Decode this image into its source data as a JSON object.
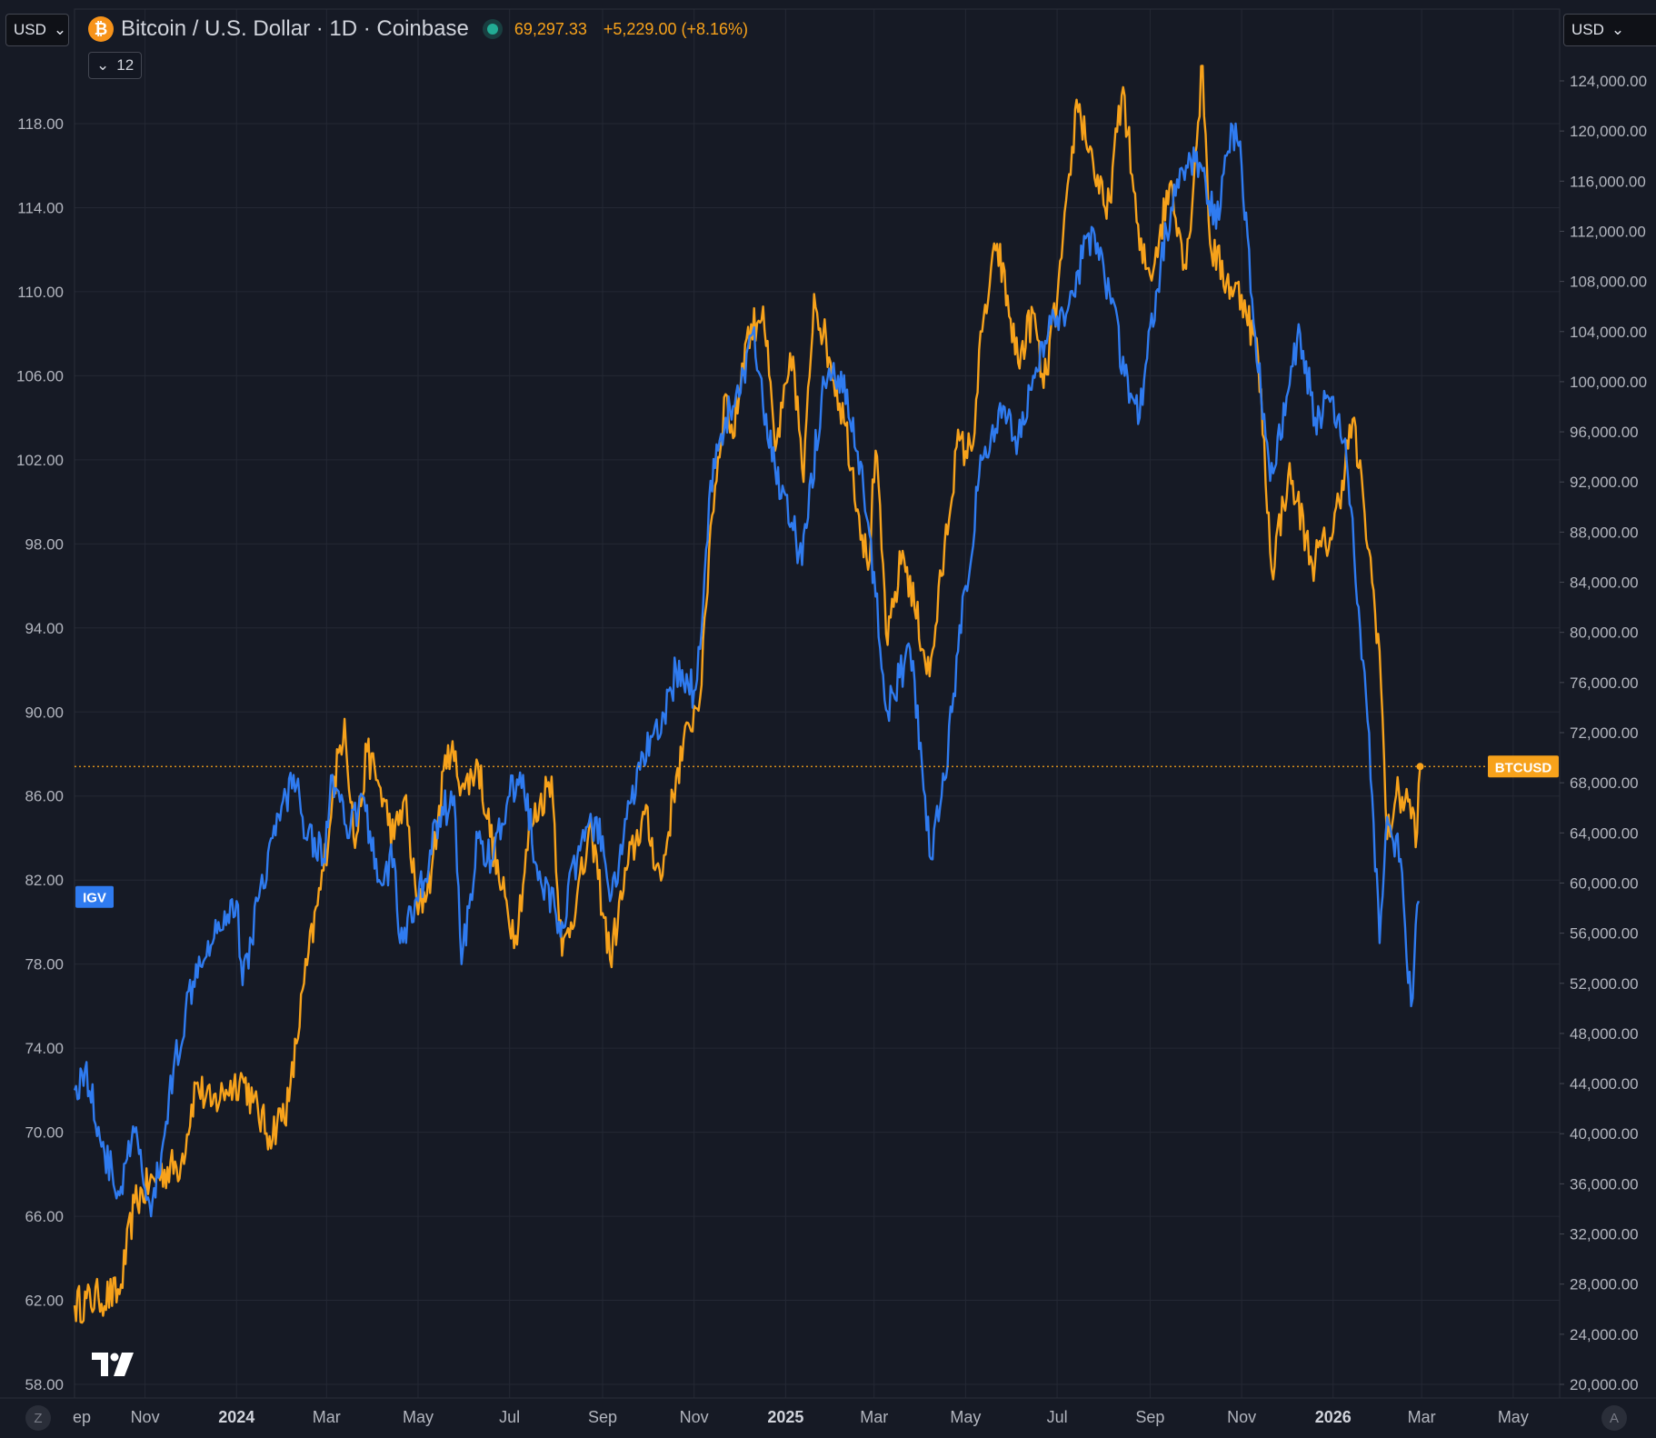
{
  "header": {
    "title": "Bitcoin / U.S. Dollar · 1D · Coinbase",
    "price": "69,297.33",
    "change": "+5,229.00 (+8.16%)",
    "left_currency": "USD",
    "right_currency": "USD",
    "collapse_count": "12"
  },
  "footer": {
    "left_corner": "Z",
    "right_corner": "A"
  },
  "colors": {
    "background": "#161a25",
    "grid": "#242834",
    "btc": "#f7a21b",
    "igv": "#2f7bf0",
    "axis_text": "#b2b5be"
  },
  "icons": [
    "bitcoin-icon",
    "chevron-down-icon",
    "tradingview-logo-icon"
  ],
  "chart_data": {
    "type": "line",
    "title": "Bitcoin / U.S. Dollar · 1D · Coinbase",
    "x_ticks": [
      "ep",
      "Nov",
      "2024",
      "Mar",
      "May",
      "Jul",
      "Sep",
      "Nov",
      "2025",
      "Mar",
      "May",
      "Jul",
      "Sep",
      "Nov",
      "2026",
      "Mar",
      "May"
    ],
    "xlim": [
      "2023-09-15",
      "2026-06-01"
    ],
    "y_left": {
      "ticks": [
        "118.00",
        "114.00",
        "110.00",
        "106.00",
        "102.00",
        "98.00",
        "94.00",
        "90.00",
        "86.00",
        "82.00",
        "78.00",
        "74.00",
        "70.00",
        "66.00",
        "62.00",
        "58.00"
      ],
      "range": [
        58,
        120
      ]
    },
    "y_right": {
      "ticks": [
        "124,000.00",
        "120,000.00",
        "116,000.00",
        "112,000.00",
        "108,000.00",
        "104,000.00",
        "100,000.00",
        "96,000.00",
        "92,000.00",
        "88,000.00",
        "84,000.00",
        "80,000.00",
        "76,000.00",
        "72,000.00",
        "68,000.00",
        "64,000.00",
        "60,000.00",
        "56,000.00",
        "52,000.00",
        "48,000.00",
        "44,000.00",
        "40,000.00",
        "36,000.00",
        "32,000.00",
        "28,000.00",
        "24,000.00",
        "20,000.00"
      ],
      "range": [
        20000,
        125000
      ]
    },
    "series": [
      {
        "name": "BTCUSD",
        "axis": "right",
        "points": [
          [
            "2023-09-15",
            26300
          ],
          [
            "2023-10-01",
            26900
          ],
          [
            "2023-10-15",
            27200
          ],
          [
            "2023-10-25",
            34500
          ],
          [
            "2023-11-10",
            36800
          ],
          [
            "2023-11-25",
            37600
          ],
          [
            "2023-12-05",
            44000
          ],
          [
            "2023-12-15",
            42200
          ],
          [
            "2023-12-25",
            43500
          ],
          [
            "2024-01-05",
            44500
          ],
          [
            "2024-01-12",
            42500
          ],
          [
            "2024-01-23",
            39800
          ],
          [
            "2024-02-05",
            42600
          ],
          [
            "2024-02-15",
            52000
          ],
          [
            "2024-02-28",
            61000
          ],
          [
            "2024-03-05",
            67000
          ],
          [
            "2024-03-13",
            73100
          ],
          [
            "2024-03-20",
            62800
          ],
          [
            "2024-03-28",
            70500
          ],
          [
            "2024-04-05",
            67800
          ],
          [
            "2024-04-15",
            63500
          ],
          [
            "2024-04-22",
            66800
          ],
          [
            "2024-05-01",
            57500
          ],
          [
            "2024-05-10",
            61000
          ],
          [
            "2024-05-21",
            71000
          ],
          [
            "2024-06-01",
            67500
          ],
          [
            "2024-06-10",
            69500
          ],
          [
            "2024-06-24",
            60200
          ],
          [
            "2024-07-05",
            55800
          ],
          [
            "2024-07-15",
            64500
          ],
          [
            "2024-07-29",
            68500
          ],
          [
            "2024-08-05",
            54200
          ],
          [
            "2024-08-15",
            59000
          ],
          [
            "2024-08-25",
            64000
          ],
          [
            "2024-09-06",
            53900
          ],
          [
            "2024-09-18",
            61500
          ],
          [
            "2024-09-29",
            65500
          ],
          [
            "2024-10-10",
            60200
          ],
          [
            "2024-10-20",
            68500
          ],
          [
            "2024-10-29",
            72500
          ],
          [
            "2024-11-06",
            75800
          ],
          [
            "2024-11-12",
            88500
          ],
          [
            "2024-11-22",
            99000
          ],
          [
            "2024-11-27",
            95500
          ],
          [
            "2024-12-05",
            103000
          ],
          [
            "2024-12-17",
            106000
          ],
          [
            "2024-12-25",
            94500
          ],
          [
            "2025-01-06",
            102000
          ],
          [
            "2025-01-13",
            92000
          ],
          [
            "2025-01-20",
            107000
          ],
          [
            "2025-01-31",
            101500
          ],
          [
            "2025-02-10",
            96500
          ],
          [
            "2025-02-25",
            85000
          ],
          [
            "2025-03-02",
            94500
          ],
          [
            "2025-03-10",
            79000
          ],
          [
            "2025-03-20",
            86500
          ],
          [
            "2025-04-07",
            76500
          ],
          [
            "2025-04-15",
            84500
          ],
          [
            "2025-04-25",
            94800
          ],
          [
            "2025-05-05",
            94500
          ],
          [
            "2025-05-12",
            104000
          ],
          [
            "2025-05-22",
            111000
          ],
          [
            "2025-06-05",
            101500
          ],
          [
            "2025-06-15",
            105500
          ],
          [
            "2025-06-22",
            99500
          ],
          [
            "2025-07-01",
            106500
          ],
          [
            "2025-07-10",
            116500
          ],
          [
            "2025-07-14",
            122500
          ],
          [
            "2025-07-25",
            117500
          ],
          [
            "2025-08-03",
            113000
          ],
          [
            "2025-08-14",
            123500
          ],
          [
            "2025-08-25",
            110500
          ],
          [
            "2025-09-01",
            108500
          ],
          [
            "2025-09-15",
            116000
          ],
          [
            "2025-09-25",
            109000
          ],
          [
            "2025-10-06",
            125200
          ],
          [
            "2025-10-11",
            111000
          ],
          [
            "2025-10-22",
            108000
          ],
          [
            "2025-11-03",
            106500
          ],
          [
            "2025-11-12",
            102000
          ],
          [
            "2025-11-21",
            85000
          ],
          [
            "2025-12-02",
            92500
          ],
          [
            "2025-12-08",
            90500
          ],
          [
            "2025-12-18",
            85500
          ],
          [
            "2026-01-01",
            88000
          ],
          [
            "2026-01-14",
            97000
          ],
          [
            "2026-01-22",
            89500
          ],
          [
            "2026-02-01",
            78500
          ],
          [
            "2026-02-06",
            63500
          ],
          [
            "2026-02-12",
            67000
          ],
          [
            "2026-02-20",
            66500
          ],
          [
            "2026-02-26",
            64000
          ],
          [
            "2026-02-28",
            69297
          ]
        ]
      },
      {
        "name": "IGV",
        "axis": "left",
        "points": [
          [
            "2023-09-15",
            72
          ],
          [
            "2023-09-22",
            73
          ],
          [
            "2023-10-05",
            69
          ],
          [
            "2023-10-15",
            67
          ],
          [
            "2023-10-25",
            70
          ],
          [
            "2023-11-05",
            66
          ],
          [
            "2023-11-12",
            69
          ],
          [
            "2023-11-20",
            73
          ],
          [
            "2023-12-05",
            78
          ],
          [
            "2023-12-20",
            80
          ],
          [
            "2024-01-01",
            81
          ],
          [
            "2024-01-05",
            77
          ],
          [
            "2024-01-15",
            81
          ],
          [
            "2024-01-25",
            84
          ],
          [
            "2024-02-08",
            87
          ],
          [
            "2024-02-14",
            85
          ],
          [
            "2024-02-28",
            83
          ],
          [
            "2024-03-05",
            87
          ],
          [
            "2024-03-15",
            84
          ],
          [
            "2024-03-25",
            86
          ],
          [
            "2024-04-05",
            82
          ],
          [
            "2024-04-15",
            83
          ],
          [
            "2024-04-19",
            79
          ],
          [
            "2024-05-01",
            81
          ],
          [
            "2024-05-15",
            85
          ],
          [
            "2024-05-25",
            86
          ],
          [
            "2024-05-30",
            78
          ],
          [
            "2024-06-10",
            84
          ],
          [
            "2024-06-20",
            83
          ],
          [
            "2024-07-01",
            86
          ],
          [
            "2024-07-10",
            87
          ],
          [
            "2024-07-20",
            82
          ],
          [
            "2024-08-05",
            80
          ],
          [
            "2024-08-15",
            83
          ],
          [
            "2024-08-28",
            85
          ],
          [
            "2024-09-06",
            81
          ],
          [
            "2024-09-15",
            84
          ],
          [
            "2024-09-28",
            88
          ],
          [
            "2024-10-10",
            89
          ],
          [
            "2024-10-20",
            92
          ],
          [
            "2024-11-01",
            91
          ],
          [
            "2024-11-05",
            93
          ],
          [
            "2024-11-12",
            101
          ],
          [
            "2024-11-22",
            104
          ],
          [
            "2024-12-01",
            105
          ],
          [
            "2024-12-10",
            108
          ],
          [
            "2024-12-20",
            103
          ],
          [
            "2025-01-05",
            99
          ],
          [
            "2025-01-12",
            97
          ],
          [
            "2025-01-25",
            105
          ],
          [
            "2025-02-05",
            106
          ],
          [
            "2025-02-15",
            104
          ],
          [
            "2025-02-25",
            99
          ],
          [
            "2025-03-10",
            90
          ],
          [
            "2025-03-25",
            93
          ],
          [
            "2025-04-04",
            86
          ],
          [
            "2025-04-08",
            83
          ],
          [
            "2025-04-15",
            86
          ],
          [
            "2025-04-22",
            90
          ],
          [
            "2025-05-01",
            96
          ],
          [
            "2025-05-12",
            102
          ],
          [
            "2025-05-25",
            104
          ],
          [
            "2025-06-05",
            103
          ],
          [
            "2025-06-15",
            106
          ],
          [
            "2025-06-25",
            108
          ],
          [
            "2025-07-05",
            109
          ],
          [
            "2025-07-15",
            111
          ],
          [
            "2025-07-25",
            113
          ],
          [
            "2025-08-05",
            110
          ],
          [
            "2025-08-15",
            106
          ],
          [
            "2025-08-25",
            104
          ],
          [
            "2025-09-05",
            110
          ],
          [
            "2025-09-15",
            114
          ],
          [
            "2025-09-25",
            116
          ],
          [
            "2025-10-05",
            116
          ],
          [
            "2025-10-15",
            113
          ],
          [
            "2025-10-25",
            118
          ],
          [
            "2025-11-01",
            116
          ],
          [
            "2025-11-10",
            108
          ],
          [
            "2025-11-20",
            101
          ],
          [
            "2025-12-01",
            105
          ],
          [
            "2025-12-10",
            108
          ],
          [
            "2025-12-20",
            104
          ],
          [
            "2026-01-01",
            105
          ],
          [
            "2026-01-10",
            102
          ],
          [
            "2026-01-18",
            95
          ],
          [
            "2026-01-25",
            89
          ],
          [
            "2026-02-01",
            79
          ],
          [
            "2026-02-06",
            85
          ],
          [
            "2026-02-15",
            83
          ],
          [
            "2026-02-22",
            76
          ],
          [
            "2026-02-27",
            81
          ]
        ]
      }
    ],
    "markers": {
      "price_line_label": "BTCUSD",
      "price_line_value": 69297,
      "igv_label": "IGV",
      "igv_label_value": 81.2
    },
    "grid": true
  }
}
